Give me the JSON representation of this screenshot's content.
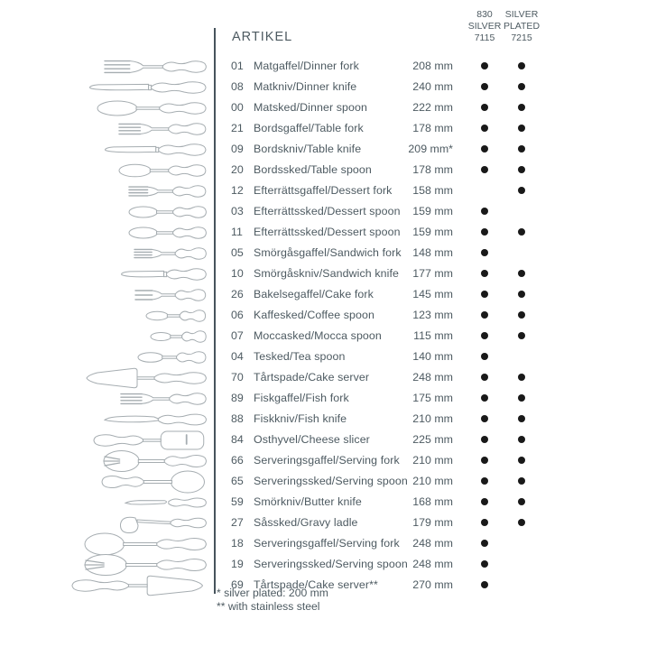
{
  "page": {
    "background": "#ffffff",
    "text_color": "#4d5a61",
    "dot_color": "#191919",
    "illustration_color": "#a6adb1"
  },
  "header": {
    "title": "ARTIKEL",
    "columns": [
      {
        "id": "830-silver",
        "lines": [
          "830",
          "SILVER",
          "7115"
        ]
      },
      {
        "id": "silver-plated",
        "lines": [
          "SILVER",
          "PLATED",
          "7215"
        ]
      }
    ]
  },
  "rows": [
    {
      "code": "01",
      "name": "Matgaffel/Dinner fork",
      "size": "208 mm",
      "length_mm": 208,
      "icon": "dinner-fork",
      "shape": "fork",
      "silver_830": true,
      "silver_plated": true
    },
    {
      "code": "08",
      "name": "Matkniv/Dinner knife",
      "size": "240 mm",
      "length_mm": 240,
      "icon": "dinner-knife",
      "shape": "knife",
      "silver_830": true,
      "silver_plated": true
    },
    {
      "code": "00",
      "name": "Matsked/Dinner spoon",
      "size": "222 mm",
      "length_mm": 222,
      "icon": "dinner-spoon",
      "shape": "spoon",
      "silver_830": true,
      "silver_plated": true
    },
    {
      "code": "21",
      "name": "Bordsgaffel/Table fork",
      "size": "178 mm",
      "length_mm": 178,
      "icon": "table-fork",
      "shape": "fork",
      "silver_830": true,
      "silver_plated": true
    },
    {
      "code": "09",
      "name": "Bordskniv/Table knife",
      "size": "209 mm*",
      "length_mm": 209,
      "icon": "table-knife",
      "shape": "knife",
      "silver_830": true,
      "silver_plated": true
    },
    {
      "code": "20",
      "name": "Bordssked/Table spoon",
      "size": "178 mm",
      "length_mm": 178,
      "icon": "table-spoon",
      "shape": "spoon",
      "silver_830": true,
      "silver_plated": true
    },
    {
      "code": "12",
      "name": "Efterrättsgaffel/Dessert fork",
      "size": "158 mm",
      "length_mm": 158,
      "icon": "dessert-fork",
      "shape": "fork",
      "silver_830": false,
      "silver_plated": true
    },
    {
      "code": "03",
      "name": "Efterrättssked/Dessert spoon",
      "size": "159 mm",
      "length_mm": 159,
      "icon": "dessert-spoon",
      "shape": "spoon",
      "silver_830": true,
      "silver_plated": false
    },
    {
      "code": "11",
      "name": "Efterrättssked/Dessert spoon",
      "size": "159 mm",
      "length_mm": 159,
      "icon": "dessert-spoon",
      "shape": "spoon",
      "silver_830": true,
      "silver_plated": true
    },
    {
      "code": "05",
      "name": "Smörgåsgaffel/Sandwich fork",
      "size": "148 mm",
      "length_mm": 148,
      "icon": "sandwich-fork",
      "shape": "fork",
      "silver_830": true,
      "silver_plated": false
    },
    {
      "code": "10",
      "name": "Smörgåskniv/Sandwich knife",
      "size": "177 mm",
      "length_mm": 177,
      "icon": "sandwich-knife",
      "shape": "knife",
      "silver_830": true,
      "silver_plated": true
    },
    {
      "code": "26",
      "name": "Bakelsegaffel/Cake fork",
      "size": "145 mm",
      "length_mm": 145,
      "icon": "cake-fork",
      "shape": "fork3",
      "silver_830": true,
      "silver_plated": true
    },
    {
      "code": "06",
      "name": "Kaffesked/Coffee spoon",
      "size": "123 mm",
      "length_mm": 123,
      "icon": "coffee-spoon",
      "shape": "spoon",
      "silver_830": true,
      "silver_plated": true
    },
    {
      "code": "07",
      "name": "Moccasked/Mocca spoon",
      "size": "115 mm",
      "length_mm": 115,
      "icon": "mocca-spoon",
      "shape": "spoon",
      "silver_830": true,
      "silver_plated": true
    },
    {
      "code": "04",
      "name": "Tesked/Tea spoon",
      "size": "140 mm",
      "length_mm": 140,
      "icon": "tea-spoon",
      "shape": "spoon",
      "silver_830": true,
      "silver_plated": false
    },
    {
      "code": "70",
      "name": "Tårtspade/Cake server",
      "size": "248 mm",
      "length_mm": 248,
      "icon": "cake-server",
      "shape": "server",
      "silver_830": true,
      "silver_plated": true
    },
    {
      "code": "89",
      "name": "Fiskgaffel/Fish fork",
      "size": "175 mm",
      "length_mm": 175,
      "icon": "fish-fork",
      "shape": "fork",
      "silver_830": true,
      "silver_plated": true
    },
    {
      "code": "88",
      "name": "Fiskkniv/Fish knife",
      "size": "210 mm",
      "length_mm": 210,
      "icon": "fish-knife",
      "shape": "fishknife",
      "silver_830": true,
      "silver_plated": true
    },
    {
      "code": "84",
      "name": "Osthyvel/Cheese slicer",
      "size": "225 mm",
      "length_mm": 225,
      "icon": "cheese-slicer",
      "shape": "cheeseslicer",
      "silver_830": true,
      "silver_plated": true
    },
    {
      "code": "66",
      "name": "Serveringsgaffel/Serving fork",
      "size": "210 mm",
      "length_mm": 210,
      "icon": "serving-fork",
      "shape": "servingfork",
      "silver_830": true,
      "silver_plated": true
    },
    {
      "code": "65",
      "name": "Serveringssked/Serving spoon",
      "size": "210 mm",
      "length_mm": 210,
      "icon": "serving-spoon",
      "shape": "servingspoonR",
      "silver_830": true,
      "silver_plated": true
    },
    {
      "code": "59",
      "name": "Smörkniv/Butter knife",
      "size": "168 mm",
      "length_mm": 168,
      "icon": "butter-knife",
      "shape": "butterknife",
      "silver_830": true,
      "silver_plated": true
    },
    {
      "code": "27",
      "name": "Såssked/Gravy ladle",
      "size": "179 mm",
      "length_mm": 179,
      "icon": "gravy-ladle",
      "shape": "ladle",
      "silver_830": true,
      "silver_plated": true
    },
    {
      "code": "18",
      "name": "Serveringsgaffel/Serving fork",
      "size": "248 mm",
      "length_mm": 248,
      "icon": "serving-fork",
      "shape": "servingspoon",
      "silver_830": true,
      "silver_plated": false
    },
    {
      "code": "19",
      "name": "Serveringssked/Serving spoon",
      "size": "248 mm",
      "length_mm": 248,
      "icon": "serving-spoon",
      "shape": "servingfork",
      "silver_830": true,
      "silver_plated": false
    },
    {
      "code": "69",
      "name": "Tårtspade/Cake server**",
      "size": "270 mm",
      "length_mm": 270,
      "icon": "cake-server",
      "shape": "serverMirror",
      "silver_830": true,
      "silver_plated": false
    }
  ],
  "footnotes": [
    "* silver plated: 200 mm",
    "** with stainless steel"
  ]
}
